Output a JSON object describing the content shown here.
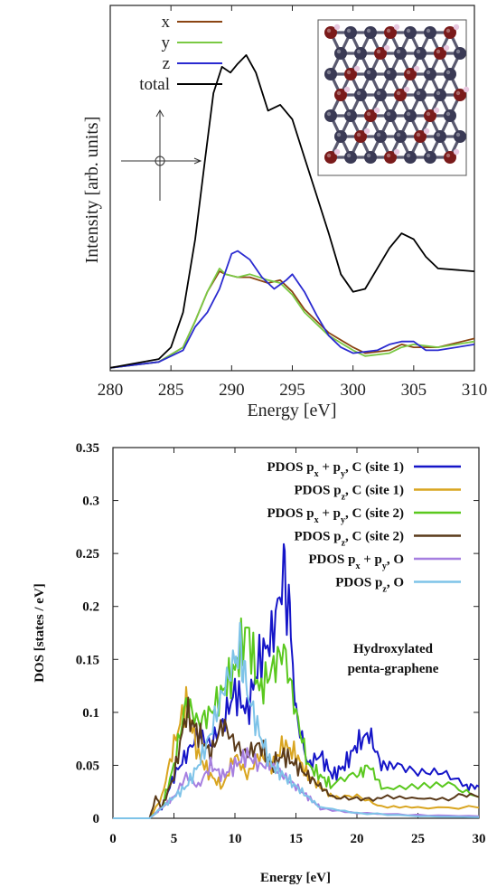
{
  "chart_data": [
    {
      "type": "line",
      "xlabel": "Energy [eV]",
      "ylabel": "Intensity [arb. units]",
      "xlim": [
        280,
        310
      ],
      "x_ticks": [
        "280",
        "285",
        "290",
        "295",
        "300",
        "305",
        "310"
      ],
      "y_ticks_shown": false,
      "legend_position": "top-left",
      "series": [
        {
          "name": "x",
          "color": "#8b4513",
          "points": [
            [
              280,
              0.01
            ],
            [
              284,
              0.03
            ],
            [
              286,
              0.08
            ],
            [
              287,
              0.17
            ],
            [
              288,
              0.27
            ],
            [
              289,
              0.34
            ],
            [
              289.5,
              0.33
            ],
            [
              290.5,
              0.32
            ],
            [
              291.5,
              0.32
            ],
            [
              293,
              0.3
            ],
            [
              294,
              0.31
            ],
            [
              295,
              0.27
            ],
            [
              296,
              0.21
            ],
            [
              298,
              0.13
            ],
            [
              300,
              0.08
            ],
            [
              301,
              0.06
            ],
            [
              303,
              0.07
            ],
            [
              304,
              0.09
            ],
            [
              305,
              0.08
            ],
            [
              307,
              0.08
            ],
            [
              310,
              0.11
            ]
          ]
        },
        {
          "name": "y",
          "color": "#7ac943",
          "points": [
            [
              280,
              0.01
            ],
            [
              284,
              0.03
            ],
            [
              286,
              0.08
            ],
            [
              287,
              0.17
            ],
            [
              288,
              0.27
            ],
            [
              289,
              0.35
            ],
            [
              289.5,
              0.33
            ],
            [
              290.5,
              0.32
            ],
            [
              291.5,
              0.33
            ],
            [
              293,
              0.31
            ],
            [
              294,
              0.3
            ],
            [
              295,
              0.26
            ],
            [
              296,
              0.2
            ],
            [
              298,
              0.12
            ],
            [
              300,
              0.07
            ],
            [
              301,
              0.05
            ],
            [
              303,
              0.06
            ],
            [
              304,
              0.08
            ],
            [
              305,
              0.09
            ],
            [
              307,
              0.08
            ],
            [
              310,
              0.1
            ]
          ]
        },
        {
          "name": "z",
          "color": "#2a2ad0",
          "points": [
            [
              280,
              0.01
            ],
            [
              284,
              0.03
            ],
            [
              286,
              0.07
            ],
            [
              287,
              0.15
            ],
            [
              288,
              0.2
            ],
            [
              289,
              0.28
            ],
            [
              290,
              0.4
            ],
            [
              290.5,
              0.41
            ],
            [
              291.5,
              0.38
            ],
            [
              292.5,
              0.32
            ],
            [
              293.5,
              0.28
            ],
            [
              294.5,
              0.31
            ],
            [
              295,
              0.33
            ],
            [
              296,
              0.27
            ],
            [
              297,
              0.19
            ],
            [
              298,
              0.12
            ],
            [
              299,
              0.08
            ],
            [
              300,
              0.06
            ],
            [
              302,
              0.07
            ],
            [
              303,
              0.09
            ],
            [
              304,
              0.1
            ],
            [
              305,
              0.1
            ],
            [
              306,
              0.07
            ],
            [
              307,
              0.07
            ],
            [
              310,
              0.09
            ]
          ]
        },
        {
          "name": "total",
          "color": "#000000",
          "points": [
            [
              280,
              0.01
            ],
            [
              284,
              0.04
            ],
            [
              285,
              0.08
            ],
            [
              286,
              0.2
            ],
            [
              287,
              0.45
            ],
            [
              287.8,
              0.72
            ],
            [
              288.5,
              0.95
            ],
            [
              289.2,
              1.04
            ],
            [
              289.9,
              1.02
            ],
            [
              290.5,
              1.05
            ],
            [
              291.2,
              1.08
            ],
            [
              292,
              1.02
            ],
            [
              293,
              0.89
            ],
            [
              294,
              0.91
            ],
            [
              295,
              0.86
            ],
            [
              296,
              0.73
            ],
            [
              297,
              0.6
            ],
            [
              298,
              0.47
            ],
            [
              299,
              0.33
            ],
            [
              300,
              0.27
            ],
            [
              301,
              0.28
            ],
            [
              302,
              0.35
            ],
            [
              303,
              0.42
            ],
            [
              304,
              0.47
            ],
            [
              305,
              0.45
            ],
            [
              306,
              0.39
            ],
            [
              307,
              0.35
            ],
            [
              310,
              0.34
            ]
          ]
        }
      ]
    },
    {
      "type": "line",
      "title": "Hydroxylated penta-graphene",
      "xlabel": "Energy [eV]",
      "ylabel": "DOS [states / eV]",
      "xlim": [
        0,
        30
      ],
      "ylim": [
        0,
        0.35
      ],
      "x_ticks": [
        "0",
        "5",
        "10",
        "15",
        "20",
        "25",
        "30"
      ],
      "y_ticks": [
        "0",
        "0.05",
        "0.1",
        "0.15",
        "0.2",
        "0.25",
        "0.3",
        "0.35"
      ],
      "legend_position": "top-right",
      "series": [
        {
          "name": "PDOS px + py, C (site 1)",
          "name_parts": [
            "PDOS p",
            "x",
            " + p",
            "y",
            ", C (site 1)"
          ],
          "color": "#1515c8",
          "points": [
            [
              0,
              0
            ],
            [
              3,
              0
            ],
            [
              4,
              0.01
            ],
            [
              5,
              0.04
            ],
            [
              6,
              0.06
            ],
            [
              7,
              0.08
            ],
            [
              8,
              0.07
            ],
            [
              9,
              0.09
            ],
            [
              10,
              0.12
            ],
            [
              11,
              0.1
            ],
            [
              12,
              0.15
            ],
            [
              13,
              0.17
            ],
            [
              14,
              0.23
            ],
            [
              14.5,
              0.19
            ],
            [
              15,
              0.1
            ],
            [
              16,
              0.05
            ],
            [
              17,
              0.06
            ],
            [
              18,
              0.04
            ],
            [
              19,
              0.05
            ],
            [
              20,
              0.07
            ],
            [
              21,
              0.08
            ],
            [
              22,
              0.05
            ],
            [
              23,
              0.05
            ],
            [
              25,
              0.04
            ],
            [
              27,
              0.04
            ],
            [
              29,
              0.03
            ],
            [
              30,
              0.03
            ]
          ]
        },
        {
          "name": "PDOS pz, C (site 1)",
          "name_parts": [
            "PDOS p",
            "z",
            ", C (site 1)"
          ],
          "color": "#d9a520",
          "points": [
            [
              0,
              0
            ],
            [
              3,
              0
            ],
            [
              4,
              0.02
            ],
            [
              5,
              0.07
            ],
            [
              6,
              0.11
            ],
            [
              7,
              0.06
            ],
            [
              8,
              0.04
            ],
            [
              9,
              0.03
            ],
            [
              10,
              0.06
            ],
            [
              11,
              0.04
            ],
            [
              12,
              0.06
            ],
            [
              13,
              0.05
            ],
            [
              14,
              0.07
            ],
            [
              15,
              0.06
            ],
            [
              16,
              0.04
            ],
            [
              17,
              0.03
            ],
            [
              18,
              0.02
            ],
            [
              20,
              0.02
            ],
            [
              22,
              0.01
            ],
            [
              25,
              0.01
            ],
            [
              30,
              0.01
            ]
          ]
        },
        {
          "name": "PDOS px + py, C (site 2)",
          "name_parts": [
            "PDOS p",
            "x",
            " + p",
            "y",
            ", C (site 2)"
          ],
          "color": "#5ac81e",
          "points": [
            [
              0,
              0
            ],
            [
              3,
              0
            ],
            [
              4,
              0.01
            ],
            [
              5,
              0.05
            ],
            [
              6,
              0.11
            ],
            [
              7,
              0.09
            ],
            [
              8,
              0.1
            ],
            [
              9,
              0.12
            ],
            [
              10,
              0.14
            ],
            [
              11,
              0.18
            ],
            [
              12,
              0.12
            ],
            [
              13,
              0.14
            ],
            [
              14,
              0.16
            ],
            [
              15,
              0.1
            ],
            [
              16,
              0.05
            ],
            [
              17,
              0.04
            ],
            [
              18,
              0.03
            ],
            [
              20,
              0.04
            ],
            [
              21,
              0.05
            ],
            [
              22,
              0.03
            ],
            [
              25,
              0.03
            ],
            [
              28,
              0.03
            ],
            [
              30,
              0.02
            ]
          ]
        },
        {
          "name": "PDOS pz, C (site 2)",
          "name_parts": [
            "PDOS p",
            "z",
            ", C (site 2)"
          ],
          "color": "#5a3a1a",
          "points": [
            [
              0,
              0
            ],
            [
              3,
              0
            ],
            [
              3.5,
              0.02
            ],
            [
              4,
              0.01
            ],
            [
              5,
              0.04
            ],
            [
              6,
              0.1
            ],
            [
              7,
              0.08
            ],
            [
              8,
              0.06
            ],
            [
              9,
              0.09
            ],
            [
              10,
              0.07
            ],
            [
              11,
              0.06
            ],
            [
              12,
              0.07
            ],
            [
              13,
              0.05
            ],
            [
              14,
              0.06
            ],
            [
              15,
              0.05
            ],
            [
              16,
              0.04
            ],
            [
              17,
              0.03
            ],
            [
              18,
              0.02
            ],
            [
              20,
              0.02
            ],
            [
              22,
              0.02
            ],
            [
              25,
              0.02
            ],
            [
              28,
              0.02
            ],
            [
              30,
              0.02
            ]
          ]
        },
        {
          "name": "PDOS px + py, O",
          "name_parts": [
            "PDOS p",
            "x",
            " + p",
            "y",
            ", O"
          ],
          "color": "#a67fe0",
          "points": [
            [
              0,
              0
            ],
            [
              3,
              0
            ],
            [
              4,
              0.01
            ],
            [
              5,
              0.02
            ],
            [
              6,
              0.04
            ],
            [
              7,
              0.03
            ],
            [
              8,
              0.05
            ],
            [
              9,
              0.04
            ],
            [
              10,
              0.05
            ],
            [
              11,
              0.06
            ],
            [
              12,
              0.05
            ],
            [
              13,
              0.05
            ],
            [
              14,
              0.04
            ],
            [
              15,
              0.03
            ],
            [
              16,
              0.02
            ],
            [
              17,
              0.01
            ],
            [
              20,
              0.005
            ],
            [
              25,
              0.003
            ],
            [
              30,
              0.002
            ]
          ]
        },
        {
          "name": "PDOS pz, O",
          "name_parts": [
            "PDOS p",
            "z",
            ", O"
          ],
          "color": "#7ec3e8",
          "points": [
            [
              0,
              0
            ],
            [
              3,
              0
            ],
            [
              4,
              0.01
            ],
            [
              5,
              0.02
            ],
            [
              6,
              0.03
            ],
            [
              7,
              0.05
            ],
            [
              8,
              0.08
            ],
            [
              9,
              0.12
            ],
            [
              10,
              0.15
            ],
            [
              10.5,
              0.16
            ],
            [
              11,
              0.12
            ],
            [
              12,
              0.08
            ],
            [
              13,
              0.05
            ],
            [
              14,
              0.04
            ],
            [
              15,
              0.03
            ],
            [
              16,
              0.02
            ],
            [
              17,
              0.01
            ],
            [
              20,
              0.005
            ],
            [
              25,
              0.002
            ],
            [
              30,
              0.001
            ]
          ]
        }
      ]
    }
  ],
  "annotation": {
    "line1": "Hydroxylated",
    "line2": "penta-graphene"
  },
  "inset_molecule": {
    "description_colors": {
      "carbon": "#3a3a55",
      "oxygen": "#7a1a1a",
      "hydrogen": "#e8c8e0"
    }
  }
}
